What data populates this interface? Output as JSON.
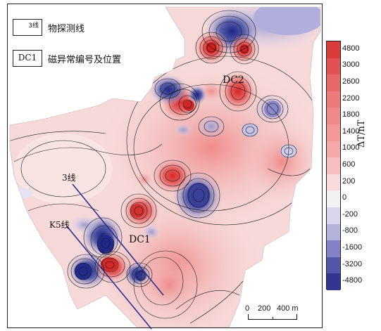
{
  "legend": {
    "survey_line_symbol_text": "3线",
    "survey_line_label": "物探测线",
    "anomaly_symbol_text": "DC1",
    "anomaly_label": "磁异常编号及位置"
  },
  "colorbar": {
    "title": "ΔT/nT",
    "ticks": [
      "4800",
      "3000",
      "2600",
      "2200",
      "1800",
      "1400",
      "1000",
      "600",
      "200",
      "0",
      "-200",
      "-800",
      "-1600",
      "-3200",
      "-4800"
    ],
    "colors": [
      "#d93a3a",
      "#e25252",
      "#e86767",
      "#ec7a7a",
      "#ef8a8a",
      "#f29a9a",
      "#f4aaaa",
      "#f7c0c0",
      "#fadada",
      "#f4f1f5",
      "#d9d5ec",
      "#b4b1dc",
      "#8482c6",
      "#5357aa",
      "#33368e"
    ]
  },
  "map_labels": {
    "dc2": "DC2",
    "dc1": "DC1",
    "line3": "3线",
    "k5": "K5线"
  },
  "scale": {
    "t0": "0",
    "t200": "200",
    "t400": "400 m"
  },
  "colors": {
    "positive": "#e65a5a",
    "negative": "#3e44a0",
    "background": "#f6d6d6",
    "survey_line": "#2b2f8f"
  }
}
